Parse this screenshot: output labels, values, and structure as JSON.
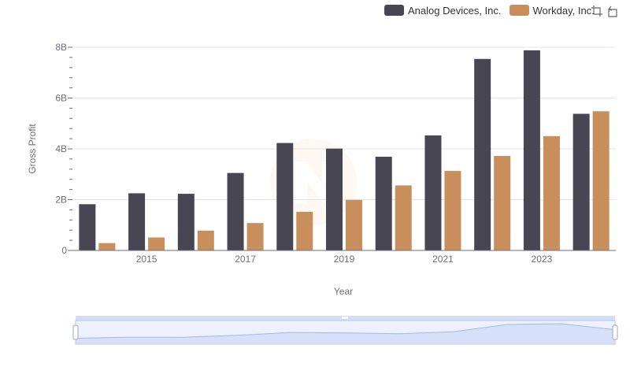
{
  "chart_data": {
    "type": "bar",
    "title": "",
    "xlabel": "Year",
    "ylabel": "Gross Profit",
    "categories": [
      "2014",
      "2015",
      "2016",
      "2017",
      "2018",
      "2019",
      "2020",
      "2021",
      "2022",
      "2023",
      "2024"
    ],
    "x_tick_labels": [
      "2015",
      "2017",
      "2019",
      "2021",
      "2023"
    ],
    "y_tick_labels": [
      "0",
      "2B",
      "4B",
      "6B",
      "8B"
    ],
    "y_ticks": [
      0,
      2000000000,
      4000000000,
      6000000000,
      8000000000
    ],
    "ylim": [
      0,
      8000000000
    ],
    "grid": true,
    "legend_position": "top-right",
    "series": [
      {
        "name": "Analog Devices, Inc.",
        "color": "#484652",
        "values": [
          1820000000,
          2250000000,
          2230000000,
          3050000000,
          4230000000,
          4010000000,
          3690000000,
          4530000000,
          7540000000,
          7880000000,
          5380000000
        ]
      },
      {
        "name": "Workday, Inc.",
        "color": "#c88f5c",
        "values": [
          290000000,
          510000000,
          780000000,
          1080000000,
          1520000000,
          1990000000,
          2560000000,
          3130000000,
          3720000000,
          4500000000,
          5480000000
        ]
      }
    ]
  },
  "colors": {
    "grid": "#e0e6f1",
    "axis": "#6e7079",
    "zoom_fill": "#dce5fb",
    "zoom_border": "#b7c6ee",
    "zoom_line": "#a6b8e6"
  },
  "toolbox": {
    "icons": [
      "zoom-icon",
      "restore-icon"
    ]
  }
}
